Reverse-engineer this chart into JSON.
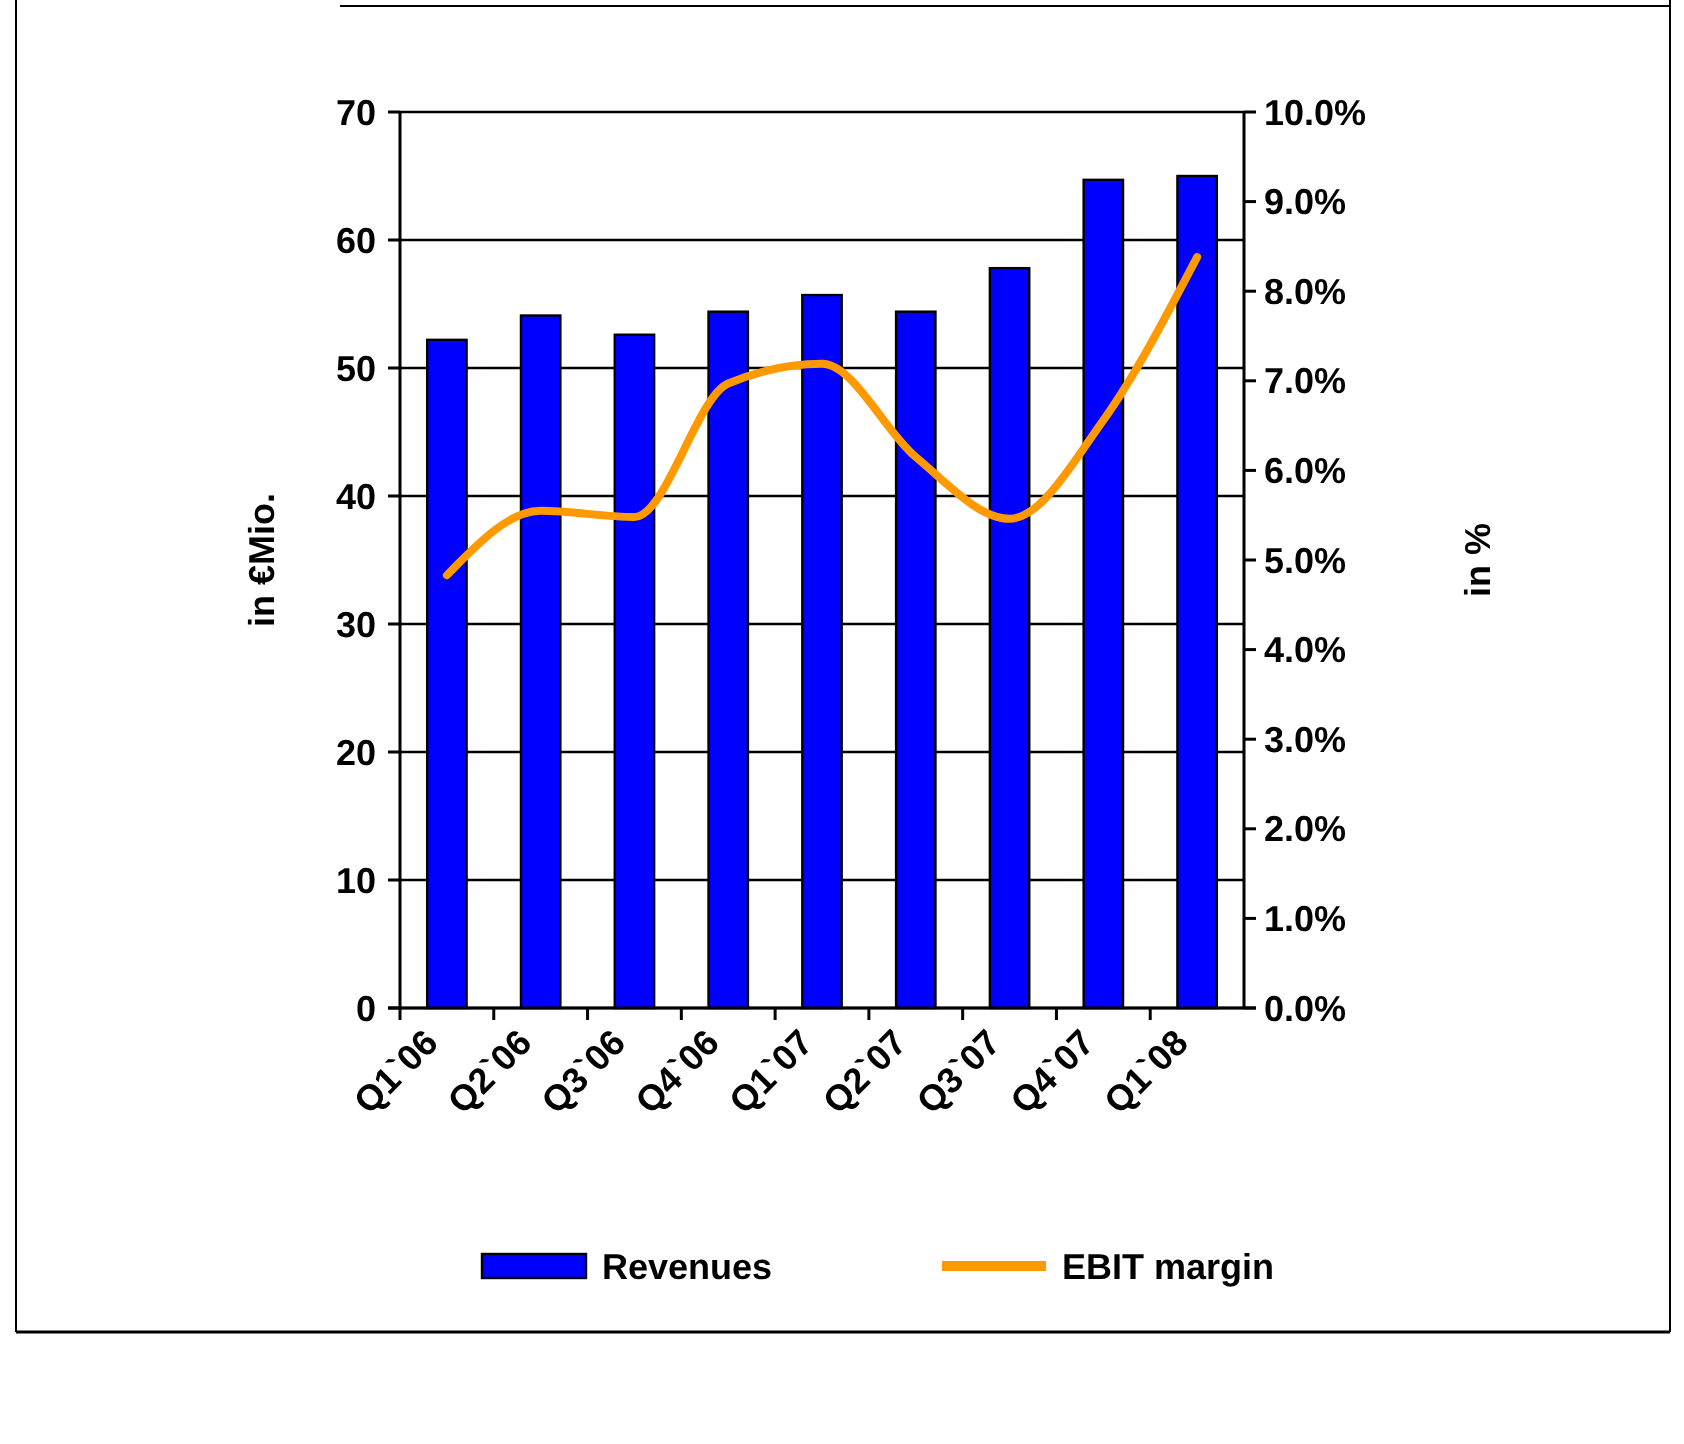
{
  "chart_data": {
    "type": "bar",
    "ylabel": "in €Mio.",
    "y2label": "in %",
    "categories": [
      "Q1`06",
      "Q2`06",
      "Q3`06",
      "Q4`06",
      "Q1`07",
      "Q2`07",
      "Q3`07",
      "Q4`07",
      "Q1`08"
    ],
    "series": [
      {
        "name": "Revenues",
        "color": "#0000ff",
        "values": [
          52.2,
          54.1,
          52.6,
          54.4,
          55.7,
          54.4,
          57.8,
          64.7,
          65.0
        ]
      },
      {
        "name": "EBIT margin",
        "type": "line",
        "axis": "y2",
        "color": "#ff9900",
        "values": [
          4.83,
          5.55,
          5.48,
          6.97,
          7.19,
          6.15,
          5.46,
          6.56,
          8.38
        ]
      }
    ],
    "ylim": [
      0,
      70
    ],
    "yticks": [
      0,
      10,
      20,
      30,
      40,
      50,
      60,
      70
    ],
    "y2lim": [
      0,
      10
    ],
    "y2ticks": [
      {
        "value": 0,
        "label": "0.0%"
      },
      {
        "value": 1,
        "label": "1.0%"
      },
      {
        "value": 2,
        "label": "2.0%"
      },
      {
        "value": 3,
        "label": "3.0%"
      },
      {
        "value": 4,
        "label": "4.0%"
      },
      {
        "value": 5,
        "label": "5.0%"
      },
      {
        "value": 6,
        "label": "6.0%"
      },
      {
        "value": 7,
        "label": "7.0%"
      },
      {
        "value": 8,
        "label": "8.0%"
      },
      {
        "value": 9,
        "label": "9.0%"
      },
      {
        "value": 10,
        "label": "10.0%"
      }
    ],
    "grid": "y",
    "legend": "bottom",
    "marker": "none",
    "line_style": "solid"
  }
}
